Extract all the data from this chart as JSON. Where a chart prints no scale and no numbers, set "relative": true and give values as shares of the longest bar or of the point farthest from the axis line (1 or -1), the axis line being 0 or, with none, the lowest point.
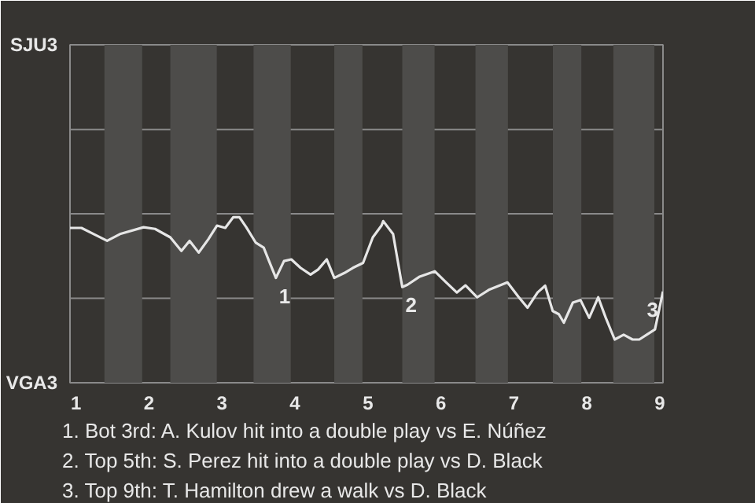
{
  "chart_data": {
    "type": "line",
    "relative": true,
    "x": [
      0.917,
      1.074,
      1.259,
      1.426,
      1.602,
      1.926,
      2.083,
      2.292,
      2.444,
      2.556,
      2.681,
      2.813,
      2.931,
      3.045,
      3.155,
      3.239,
      3.333,
      3.461,
      3.572,
      3.645,
      3.739,
      3.85,
      3.95,
      4.076,
      4.214,
      4.318,
      4.436,
      4.539,
      4.678,
      4.795,
      4.934,
      5.067,
      5.186,
      5.21,
      5.345,
      5.471,
      5.543,
      5.702,
      5.916,
      6.059,
      6.218,
      6.338,
      6.498,
      6.657,
      6.912,
      7.062,
      7.187,
      7.325,
      7.429,
      7.533,
      7.616,
      7.685,
      7.809,
      7.913,
      8.033,
      8.156,
      8.26,
      8.382,
      8.505,
      8.627,
      8.719,
      8.842,
      8.934,
      9.044
    ],
    "series": [
      {
        "color": "#e6e6e6",
        "values": [
          0.935,
          0.935,
          0.894,
          0.857,
          0.898,
          0.939,
          0.929,
          0.878,
          0.796,
          0.857,
          0.786,
          0.867,
          0.949,
          0.935,
          1,
          1,
          0.939,
          0.847,
          0.816,
          0.735,
          0.633,
          0.735,
          0.745,
          0.694,
          0.653,
          0.684,
          0.745,
          0.633,
          0.663,
          0.694,
          0.724,
          0.878,
          0.949,
          0.976,
          0.898,
          0.578,
          0.592,
          0.639,
          0.673,
          0.612,
          0.545,
          0.588,
          0.516,
          0.561,
          0.606,
          0.52,
          0.453,
          0.545,
          0.586,
          0.433,
          0.414,
          0.363,
          0.484,
          0.5,
          0.392,
          0.516,
          0.392,
          0.261,
          0.29,
          0.261,
          0.261,
          0.296,
          0.322,
          0.551
        ]
      }
    ],
    "xlim": [
      0.917,
      9.044
    ],
    "xticks": [
      1,
      2,
      3,
      4,
      5,
      6,
      7,
      8,
      9
    ],
    "marker": "none",
    "line_style": "solid",
    "ref_lines": [
      {
        "axis": "y",
        "value": 0.51,
        "color": "#8a8a8a"
      },
      {
        "axis": "y",
        "value": 1.02,
        "color": "#8a8a8a"
      },
      {
        "axis": "y",
        "value": 1.53,
        "color": "#8a8a8a"
      }
    ],
    "bands": [
      {
        "axis": "x",
        "from": 1.389,
        "to": 1.906,
        "color": "#4d4c4a"
      },
      {
        "axis": "x",
        "from": 2.292,
        "to": 2.929,
        "color": "#4d4c4a"
      },
      {
        "axis": "x",
        "from": 3.433,
        "to": 3.943,
        "color": "#4d4c4a"
      },
      {
        "axis": "x",
        "from": 4.539,
        "to": 4.925,
        "color": "#4d4c4a"
      },
      {
        "axis": "x",
        "from": 5.471,
        "to": 5.914,
        "color": "#4d4c4a"
      },
      {
        "axis": "x",
        "from": 6.474,
        "to": 6.919,
        "color": "#4d4c4a"
      },
      {
        "axis": "x",
        "from": 7.535,
        "to": 7.925,
        "color": "#4d4c4a"
      },
      {
        "axis": "x",
        "from": 8.364,
        "to": 8.926,
        "color": "#4d4c4a"
      }
    ],
    "annotations": [
      "SJU3",
      "VGA3",
      {
        "text": "1",
        "x": 3.739,
        "y": 0.633
      },
      {
        "text": "2",
        "x": 5.471,
        "y": 0.578
      },
      {
        "text": "3",
        "x": 9.044,
        "y": 0.551
      },
      "1. Bot 3rd: A. Kulov hit into a double play vs E. Núñez",
      "2. Top 5th: S. Perez hit into a double play vs D. Black",
      "3. Top 9th: T. Hamilton drew a walk vs D. Black"
    ]
  }
}
